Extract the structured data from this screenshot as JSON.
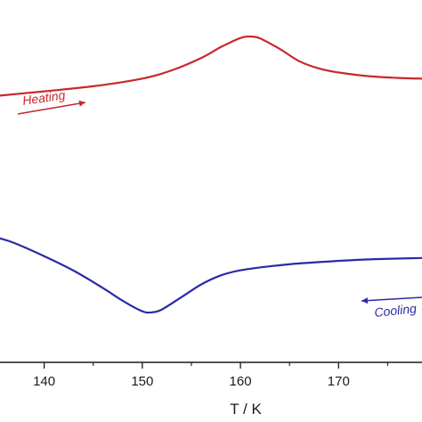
{
  "chart_data": {
    "type": "line",
    "title": "",
    "xlabel": "T / K",
    "ylabel": "",
    "xlim": [
      135.5,
      178.5
    ],
    "ylim": [
      0,
      1
    ],
    "grid": false,
    "x_ticks": [
      140,
      150,
      160,
      170
    ],
    "x_tick_labels": [
      "140",
      "150",
      "160",
      "170"
    ],
    "series": [
      {
        "color": "#c8282e",
        "x": [
          135.5,
          140,
          145,
          150,
          153,
          156,
          158,
          160,
          161,
          162,
          164,
          166,
          168,
          170,
          173,
          176,
          178.5
        ],
        "y": [
          0.736,
          0.748,
          0.762,
          0.783,
          0.806,
          0.84,
          0.87,
          0.895,
          0.899,
          0.894,
          0.865,
          0.831,
          0.811,
          0.8,
          0.79,
          0.785,
          0.783
        ]
      },
      {
        "color": "#2a2aa6",
        "x": [
          135.5,
          137,
          140,
          143,
          146,
          148,
          150,
          151,
          152,
          154,
          156,
          158,
          160,
          163,
          166,
          170,
          174,
          178.5
        ],
        "y": [
          0.342,
          0.329,
          0.293,
          0.253,
          0.205,
          0.17,
          0.141,
          0.138,
          0.146,
          0.18,
          0.215,
          0.24,
          0.254,
          0.265,
          0.273,
          0.28,
          0.285,
          0.288
        ]
      }
    ],
    "annotations": [
      {
        "text": "Heating",
        "color": "#c8282e",
        "arrow": "right"
      },
      {
        "text": "Cooling",
        "color": "#2a2aa6",
        "arrow": "left"
      }
    ]
  }
}
